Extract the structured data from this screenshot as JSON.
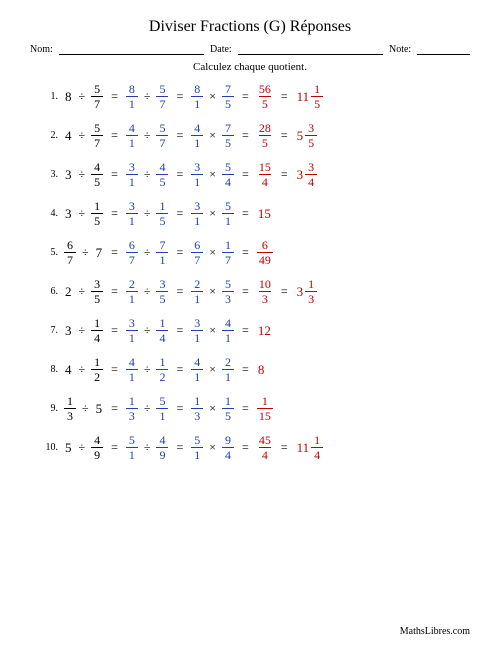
{
  "title": "Diviser Fractions (G) Réponses",
  "labels": {
    "nom": "Nom:",
    "date": "Date:",
    "note": "Note:"
  },
  "subtitle": "Calculez chaque quotient.",
  "footer": "MathsLibres.com",
  "colors": {
    "black": "#000000",
    "blue": "#2040b0",
    "red": "#c00000"
  },
  "problems": [
    {
      "n": "1.",
      "terms": [
        {
          "type": "whole",
          "v": "8",
          "c": "black"
        },
        {
          "type": "op",
          "v": "÷"
        },
        {
          "type": "frac",
          "num": "5",
          "den": "7",
          "c": "black"
        },
        {
          "type": "eq"
        },
        {
          "type": "frac",
          "num": "8",
          "den": "1",
          "c": "blue"
        },
        {
          "type": "op",
          "v": "÷"
        },
        {
          "type": "frac",
          "num": "5",
          "den": "7",
          "c": "blue"
        },
        {
          "type": "eq"
        },
        {
          "type": "frac",
          "num": "8",
          "den": "1",
          "c": "blue"
        },
        {
          "type": "op",
          "v": "×"
        },
        {
          "type": "frac",
          "num": "7",
          "den": "5",
          "c": "blue"
        },
        {
          "type": "eq"
        },
        {
          "type": "frac",
          "num": "56",
          "den": "5",
          "c": "red"
        },
        {
          "type": "eq"
        },
        {
          "type": "mixed",
          "w": "11",
          "num": "1",
          "den": "5",
          "c": "red"
        }
      ]
    },
    {
      "n": "2.",
      "terms": [
        {
          "type": "whole",
          "v": "4",
          "c": "black"
        },
        {
          "type": "op",
          "v": "÷"
        },
        {
          "type": "frac",
          "num": "5",
          "den": "7",
          "c": "black"
        },
        {
          "type": "eq"
        },
        {
          "type": "frac",
          "num": "4",
          "den": "1",
          "c": "blue"
        },
        {
          "type": "op",
          "v": "÷"
        },
        {
          "type": "frac",
          "num": "5",
          "den": "7",
          "c": "blue"
        },
        {
          "type": "eq"
        },
        {
          "type": "frac",
          "num": "4",
          "den": "1",
          "c": "blue"
        },
        {
          "type": "op",
          "v": "×"
        },
        {
          "type": "frac",
          "num": "7",
          "den": "5",
          "c": "blue"
        },
        {
          "type": "eq"
        },
        {
          "type": "frac",
          "num": "28",
          "den": "5",
          "c": "red"
        },
        {
          "type": "eq"
        },
        {
          "type": "mixed",
          "w": "5",
          "num": "3",
          "den": "5",
          "c": "red"
        }
      ]
    },
    {
      "n": "3.",
      "terms": [
        {
          "type": "whole",
          "v": "3",
          "c": "black"
        },
        {
          "type": "op",
          "v": "÷"
        },
        {
          "type": "frac",
          "num": "4",
          "den": "5",
          "c": "black"
        },
        {
          "type": "eq"
        },
        {
          "type": "frac",
          "num": "3",
          "den": "1",
          "c": "blue"
        },
        {
          "type": "op",
          "v": "÷"
        },
        {
          "type": "frac",
          "num": "4",
          "den": "5",
          "c": "blue"
        },
        {
          "type": "eq"
        },
        {
          "type": "frac",
          "num": "3",
          "den": "1",
          "c": "blue"
        },
        {
          "type": "op",
          "v": "×"
        },
        {
          "type": "frac",
          "num": "5",
          "den": "4",
          "c": "blue"
        },
        {
          "type": "eq"
        },
        {
          "type": "frac",
          "num": "15",
          "den": "4",
          "c": "red"
        },
        {
          "type": "eq"
        },
        {
          "type": "mixed",
          "w": "3",
          "num": "3",
          "den": "4",
          "c": "red"
        }
      ]
    },
    {
      "n": "4.",
      "terms": [
        {
          "type": "whole",
          "v": "3",
          "c": "black"
        },
        {
          "type": "op",
          "v": "÷"
        },
        {
          "type": "frac",
          "num": "1",
          "den": "5",
          "c": "black"
        },
        {
          "type": "eq"
        },
        {
          "type": "frac",
          "num": "3",
          "den": "1",
          "c": "blue"
        },
        {
          "type": "op",
          "v": "÷"
        },
        {
          "type": "frac",
          "num": "1",
          "den": "5",
          "c": "blue"
        },
        {
          "type": "eq"
        },
        {
          "type": "frac",
          "num": "3",
          "den": "1",
          "c": "blue"
        },
        {
          "type": "op",
          "v": "×"
        },
        {
          "type": "frac",
          "num": "5",
          "den": "1",
          "c": "blue"
        },
        {
          "type": "eq"
        },
        {
          "type": "whole",
          "v": "15",
          "c": "red"
        }
      ]
    },
    {
      "n": "5.",
      "terms": [
        {
          "type": "frac",
          "num": "6",
          "den": "7",
          "c": "black"
        },
        {
          "type": "op",
          "v": "÷"
        },
        {
          "type": "whole",
          "v": "7",
          "c": "black"
        },
        {
          "type": "eq"
        },
        {
          "type": "frac",
          "num": "6",
          "den": "7",
          "c": "blue"
        },
        {
          "type": "op",
          "v": "÷"
        },
        {
          "type": "frac",
          "num": "7",
          "den": "1",
          "c": "blue"
        },
        {
          "type": "eq"
        },
        {
          "type": "frac",
          "num": "6",
          "den": "7",
          "c": "blue"
        },
        {
          "type": "op",
          "v": "×"
        },
        {
          "type": "frac",
          "num": "1",
          "den": "7",
          "c": "blue"
        },
        {
          "type": "eq"
        },
        {
          "type": "frac",
          "num": "6",
          "den": "49",
          "c": "red"
        }
      ]
    },
    {
      "n": "6.",
      "terms": [
        {
          "type": "whole",
          "v": "2",
          "c": "black"
        },
        {
          "type": "op",
          "v": "÷"
        },
        {
          "type": "frac",
          "num": "3",
          "den": "5",
          "c": "black"
        },
        {
          "type": "eq"
        },
        {
          "type": "frac",
          "num": "2",
          "den": "1",
          "c": "blue"
        },
        {
          "type": "op",
          "v": "÷"
        },
        {
          "type": "frac",
          "num": "3",
          "den": "5",
          "c": "blue"
        },
        {
          "type": "eq"
        },
        {
          "type": "frac",
          "num": "2",
          "den": "1",
          "c": "blue"
        },
        {
          "type": "op",
          "v": "×"
        },
        {
          "type": "frac",
          "num": "5",
          "den": "3",
          "c": "blue"
        },
        {
          "type": "eq"
        },
        {
          "type": "frac",
          "num": "10",
          "den": "3",
          "c": "red"
        },
        {
          "type": "eq"
        },
        {
          "type": "mixed",
          "w": "3",
          "num": "1",
          "den": "3",
          "c": "red"
        }
      ]
    },
    {
      "n": "7.",
      "terms": [
        {
          "type": "whole",
          "v": "3",
          "c": "black"
        },
        {
          "type": "op",
          "v": "÷"
        },
        {
          "type": "frac",
          "num": "1",
          "den": "4",
          "c": "black"
        },
        {
          "type": "eq"
        },
        {
          "type": "frac",
          "num": "3",
          "den": "1",
          "c": "blue"
        },
        {
          "type": "op",
          "v": "÷"
        },
        {
          "type": "frac",
          "num": "1",
          "den": "4",
          "c": "blue"
        },
        {
          "type": "eq"
        },
        {
          "type": "frac",
          "num": "3",
          "den": "1",
          "c": "blue"
        },
        {
          "type": "op",
          "v": "×"
        },
        {
          "type": "frac",
          "num": "4",
          "den": "1",
          "c": "blue"
        },
        {
          "type": "eq"
        },
        {
          "type": "whole",
          "v": "12",
          "c": "red"
        }
      ]
    },
    {
      "n": "8.",
      "terms": [
        {
          "type": "whole",
          "v": "4",
          "c": "black"
        },
        {
          "type": "op",
          "v": "÷"
        },
        {
          "type": "frac",
          "num": "1",
          "den": "2",
          "c": "black"
        },
        {
          "type": "eq"
        },
        {
          "type": "frac",
          "num": "4",
          "den": "1",
          "c": "blue"
        },
        {
          "type": "op",
          "v": "÷"
        },
        {
          "type": "frac",
          "num": "1",
          "den": "2",
          "c": "blue"
        },
        {
          "type": "eq"
        },
        {
          "type": "frac",
          "num": "4",
          "den": "1",
          "c": "blue"
        },
        {
          "type": "op",
          "v": "×"
        },
        {
          "type": "frac",
          "num": "2",
          "den": "1",
          "c": "blue"
        },
        {
          "type": "eq"
        },
        {
          "type": "whole",
          "v": "8",
          "c": "red"
        }
      ]
    },
    {
      "n": "9.",
      "terms": [
        {
          "type": "frac",
          "num": "1",
          "den": "3",
          "c": "black"
        },
        {
          "type": "op",
          "v": "÷"
        },
        {
          "type": "whole",
          "v": "5",
          "c": "black"
        },
        {
          "type": "eq"
        },
        {
          "type": "frac",
          "num": "1",
          "den": "3",
          "c": "blue"
        },
        {
          "type": "op",
          "v": "÷"
        },
        {
          "type": "frac",
          "num": "5",
          "den": "1",
          "c": "blue"
        },
        {
          "type": "eq"
        },
        {
          "type": "frac",
          "num": "1",
          "den": "3",
          "c": "blue"
        },
        {
          "type": "op",
          "v": "×"
        },
        {
          "type": "frac",
          "num": "1",
          "den": "5",
          "c": "blue"
        },
        {
          "type": "eq"
        },
        {
          "type": "frac",
          "num": "1",
          "den": "15",
          "c": "red"
        }
      ]
    },
    {
      "n": "10.",
      "terms": [
        {
          "type": "whole",
          "v": "5",
          "c": "black"
        },
        {
          "type": "op",
          "v": "÷"
        },
        {
          "type": "frac",
          "num": "4",
          "den": "9",
          "c": "black"
        },
        {
          "type": "eq"
        },
        {
          "type": "frac",
          "num": "5",
          "den": "1",
          "c": "blue"
        },
        {
          "type": "op",
          "v": "÷"
        },
        {
          "type": "frac",
          "num": "4",
          "den": "9",
          "c": "blue"
        },
        {
          "type": "eq"
        },
        {
          "type": "frac",
          "num": "5",
          "den": "1",
          "c": "blue"
        },
        {
          "type": "op",
          "v": "×"
        },
        {
          "type": "frac",
          "num": "9",
          "den": "4",
          "c": "blue"
        },
        {
          "type": "eq"
        },
        {
          "type": "frac",
          "num": "45",
          "den": "4",
          "c": "red"
        },
        {
          "type": "eq"
        },
        {
          "type": "mixed",
          "w": "11",
          "num": "1",
          "den": "4",
          "c": "red"
        }
      ]
    }
  ]
}
